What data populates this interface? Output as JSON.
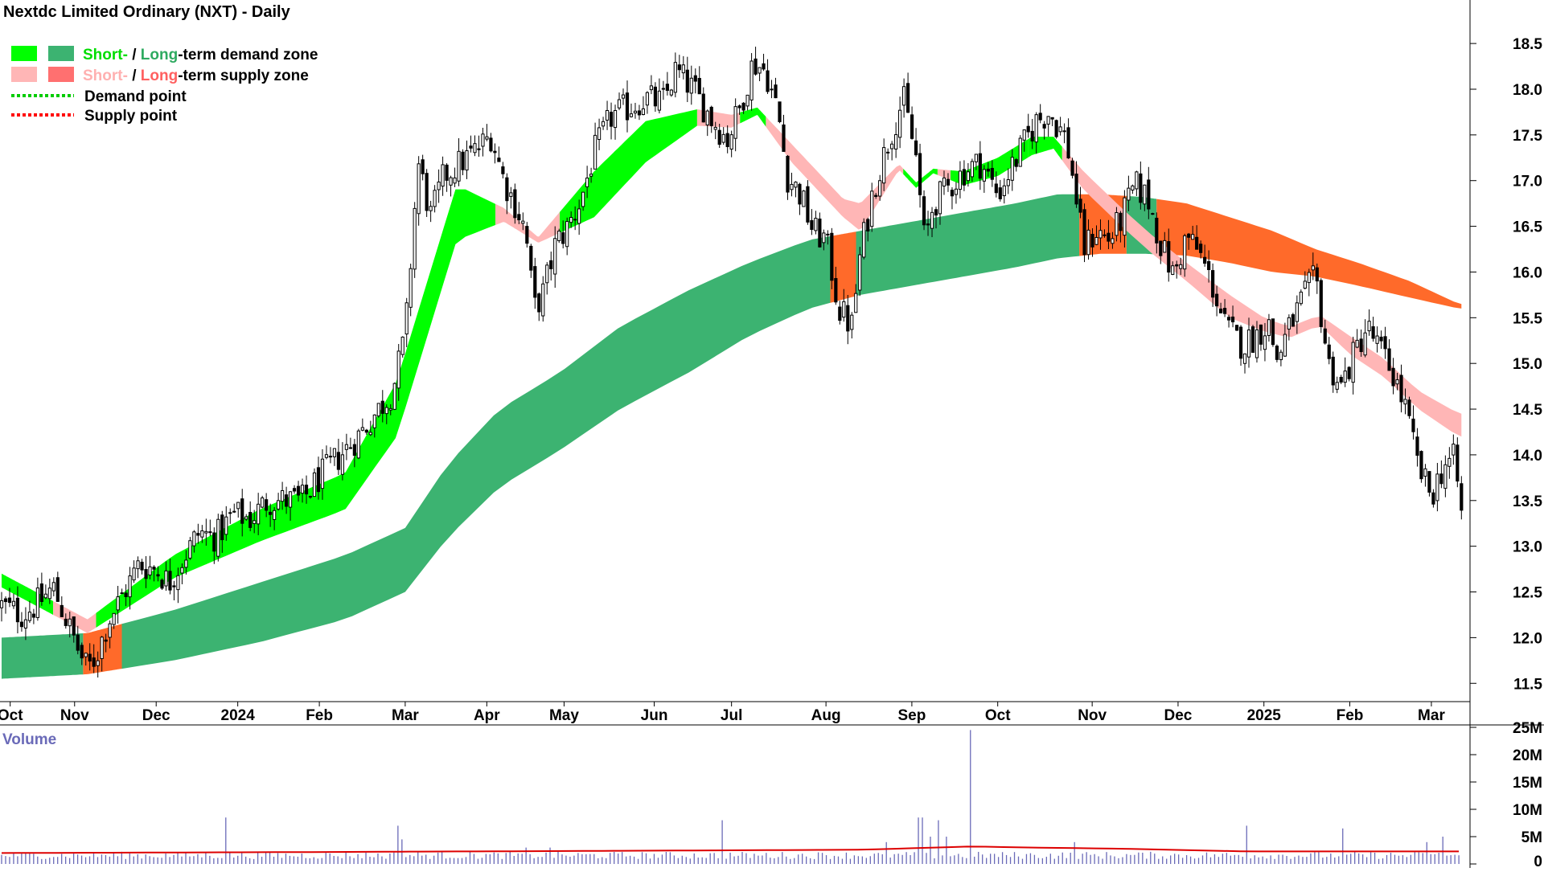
{
  "title": "Nextdc Limited Ordinary (NXT) - Daily",
  "colors": {
    "short_demand": "#00ff00",
    "long_demand": "#3cb371",
    "short_supply": "#ffb6b6",
    "long_supply": "#ff6a2a",
    "demand_point": "#00cc00",
    "supply_point": "#ff0000",
    "volume_bar": "#6a6ab8",
    "volume_ma": "#dd0000",
    "candle": "#000000"
  },
  "legend": {
    "demand": {
      "short": "Short-",
      "sep": " / ",
      "long": "Long",
      "rest": "-term demand zone"
    },
    "supply": {
      "short": "Short-",
      "sep": " / ",
      "long": "Long",
      "rest": "-term supply zone"
    },
    "demand_point": "Demand point",
    "supply_point": "Supply point"
  },
  "volume_label": "Volume",
  "chart_data": [
    {
      "type": "candlestick",
      "title": "Nextdc Limited Ordinary (NXT) - Daily",
      "x_ticks": [
        {
          "t": 0.1,
          "label": "Oct"
        },
        {
          "t": 0.85,
          "label": "Nov"
        },
        {
          "t": 1.8,
          "label": "Dec"
        },
        {
          "t": 2.75,
          "label": "2024"
        },
        {
          "t": 3.7,
          "label": "Feb"
        },
        {
          "t": 4.7,
          "label": "Mar"
        },
        {
          "t": 5.65,
          "label": "Apr"
        },
        {
          "t": 6.55,
          "label": "May"
        },
        {
          "t": 7.6,
          "label": "Jun"
        },
        {
          "t": 8.5,
          "label": "Jul"
        },
        {
          "t": 9.6,
          "label": "Aug"
        },
        {
          "t": 10.6,
          "label": "Sep"
        },
        {
          "t": 11.6,
          "label": "Oct"
        },
        {
          "t": 12.7,
          "label": "Nov"
        },
        {
          "t": 13.7,
          "label": "Dec"
        },
        {
          "t": 14.7,
          "label": "2025"
        },
        {
          "t": 15.7,
          "label": "Feb"
        },
        {
          "t": 16.65,
          "label": "Mar"
        }
      ],
      "y_ticks": [
        "11.5",
        "12.0",
        "12.5",
        "13.0",
        "13.5",
        "14.0",
        "14.5",
        "15.0",
        "15.5",
        "16.0",
        "16.5",
        "17.0",
        "17.5",
        "18.0",
        "18.5"
      ],
      "ylim": [
        11.3,
        18.8
      ],
      "x_range_months": [
        0,
        17.1
      ],
      "close_path": [
        [
          0,
          12.35
        ],
        [
          0.25,
          12.25
        ],
        [
          0.45,
          12.4
        ],
        [
          0.6,
          12.55
        ],
        [
          0.75,
          12.2
        ],
        [
          0.9,
          11.85
        ],
        [
          1.0,
          11.65
        ],
        [
          1.1,
          11.8
        ],
        [
          1.25,
          12.2
        ],
        [
          1.4,
          12.45
        ],
        [
          1.6,
          12.8
        ],
        [
          1.8,
          12.75
        ],
        [
          1.95,
          12.6
        ],
        [
          2.1,
          12.85
        ],
        [
          2.3,
          13.15
        ],
        [
          2.5,
          13.1
        ],
        [
          2.7,
          13.35
        ],
        [
          2.9,
          13.3
        ],
        [
          3.1,
          13.5
        ],
        [
          3.3,
          13.5
        ],
        [
          3.5,
          13.5
        ],
        [
          3.7,
          13.75
        ],
        [
          3.9,
          13.95
        ],
        [
          4.15,
          14.2
        ],
        [
          4.35,
          14.45
        ],
        [
          4.55,
          14.7
        ],
        [
          4.7,
          15.3
        ],
        [
          4.85,
          17.2
        ],
        [
          5.0,
          16.6
        ],
        [
          5.15,
          17.05
        ],
        [
          5.35,
          17.2
        ],
        [
          5.55,
          17.35
        ],
        [
          5.7,
          17.5
        ],
        [
          5.85,
          17.0
        ],
        [
          6.0,
          16.7
        ],
        [
          6.1,
          16.45
        ],
        [
          6.2,
          15.6
        ],
        [
          6.3,
          15.75
        ],
        [
          6.45,
          16.3
        ],
        [
          6.6,
          16.5
        ],
        [
          6.75,
          16.8
        ],
        [
          6.9,
          17.3
        ],
        [
          7.1,
          17.7
        ],
        [
          7.3,
          17.8
        ],
        [
          7.5,
          17.9
        ],
        [
          7.7,
          17.85
        ],
        [
          7.85,
          18.2
        ],
        [
          8.05,
          18.0
        ],
        [
          8.25,
          17.7
        ],
        [
          8.45,
          17.45
        ],
        [
          8.6,
          17.8
        ],
        [
          8.75,
          18.3
        ],
        [
          8.9,
          18.2
        ],
        [
          9.05,
          17.7
        ],
        [
          9.15,
          17.05
        ],
        [
          9.3,
          16.85
        ],
        [
          9.45,
          16.45
        ],
        [
          9.6,
          16.35
        ],
        [
          9.75,
          15.6
        ],
        [
          9.9,
          15.4
        ],
        [
          10.0,
          16.2
        ],
        [
          10.15,
          16.9
        ],
        [
          10.35,
          17.5
        ],
        [
          10.5,
          17.9
        ],
        [
          10.65,
          17.25
        ],
        [
          10.75,
          16.3
        ],
        [
          10.85,
          16.75
        ],
        [
          11.0,
          16.9
        ],
        [
          11.2,
          17.1
        ],
        [
          11.4,
          17.2
        ],
        [
          11.6,
          16.85
        ],
        [
          11.85,
          17.3
        ],
        [
          12.05,
          17.65
        ],
        [
          12.2,
          17.75
        ],
        [
          12.4,
          17.45
        ],
        [
          12.5,
          16.9
        ],
        [
          12.6,
          16.25
        ],
        [
          12.75,
          16.45
        ],
        [
          12.9,
          16.35
        ],
        [
          13.05,
          16.6
        ],
        [
          13.2,
          16.95
        ],
        [
          13.35,
          16.8
        ],
        [
          13.5,
          16.3
        ],
        [
          13.65,
          15.95
        ],
        [
          13.8,
          16.4
        ],
        [
          13.95,
          16.2
        ],
        [
          14.1,
          15.85
        ],
        [
          14.25,
          15.4
        ],
        [
          14.45,
          15.2
        ],
        [
          14.6,
          15.3
        ],
        [
          14.75,
          15.45
        ],
        [
          14.85,
          15.05
        ],
        [
          15.0,
          15.4
        ],
        [
          15.15,
          15.7
        ],
        [
          15.3,
          15.95
        ],
        [
          15.45,
          15.0
        ],
        [
          15.6,
          14.75
        ],
        [
          15.75,
          15.1
        ],
        [
          15.9,
          15.4
        ],
        [
          16.05,
          15.15
        ],
        [
          16.2,
          14.9
        ],
        [
          16.35,
          14.5
        ],
        [
          16.5,
          13.85
        ],
        [
          16.65,
          13.55
        ],
        [
          16.8,
          13.9
        ],
        [
          16.92,
          13.95
        ],
        [
          17.0,
          13.35
        ]
      ],
      "short_term_zone": {
        "x": [
          0,
          1.0,
          2.0,
          3.0,
          4.0,
          4.6,
          5.3,
          5.85,
          6.25,
          6.9,
          7.5,
          8.1,
          8.5,
          8.8,
          9.2,
          9.8,
          10.0,
          10.45,
          10.65,
          10.85,
          11.2,
          11.6,
          12.0,
          12.25,
          12.6,
          13.1,
          13.4,
          13.8,
          14.3,
          14.7,
          15.0,
          15.35,
          15.7,
          16.1,
          16.5,
          16.97
        ],
        "upper": [
          12.7,
          12.2,
          12.9,
          13.4,
          13.8,
          14.8,
          16.95,
          16.7,
          16.38,
          17.1,
          17.65,
          17.78,
          17.72,
          17.8,
          17.4,
          16.8,
          16.75,
          17.18,
          16.98,
          17.13,
          17.1,
          17.25,
          17.48,
          17.48,
          17.1,
          16.65,
          16.4,
          16.1,
          15.75,
          15.5,
          15.4,
          15.53,
          15.3,
          15.05,
          14.7,
          14.45
        ],
        "lower": [
          12.55,
          12.05,
          12.65,
          13.05,
          13.4,
          14.2,
          16.35,
          16.55,
          16.32,
          16.6,
          17.2,
          17.6,
          17.58,
          17.72,
          17.2,
          16.6,
          16.45,
          17.12,
          16.92,
          17.08,
          16.95,
          17.05,
          17.28,
          17.35,
          16.9,
          16.45,
          16.2,
          15.9,
          15.5,
          15.35,
          15.28,
          15.42,
          15.1,
          14.85,
          14.5,
          14.2
        ],
        "state": [
          [
            "demand",
            0,
            0.6
          ],
          [
            "supply",
            0.6,
            1.1
          ],
          [
            "demand",
            1.1,
            5.75
          ],
          [
            "supply",
            5.75,
            6.5
          ],
          [
            "demand",
            6.5,
            8.1
          ],
          [
            "supply",
            8.1,
            8.6
          ],
          [
            "demand",
            8.6,
            8.9
          ],
          [
            "supply",
            8.9,
            10.5
          ],
          [
            "demand",
            10.5,
            10.9
          ],
          [
            "supply",
            10.9,
            11.05
          ],
          [
            "demand",
            11.05,
            11.95
          ],
          [
            "demand",
            11.95,
            12.35
          ],
          [
            "supply",
            12.35,
            17.0
          ]
        ]
      },
      "long_term_zone": {
        "x": [
          0,
          1.0,
          2.0,
          3.0,
          4.0,
          4.7,
          5.2,
          5.8,
          6.5,
          7.2,
          8.0,
          8.7,
          9.4,
          10.0,
          10.6,
          11.2,
          11.8,
          12.3,
          12.8,
          13.3,
          13.8,
          14.3,
          14.8,
          15.3,
          15.8,
          16.4,
          16.97
        ],
        "upper": [
          12.0,
          12.05,
          12.3,
          12.6,
          12.9,
          13.2,
          13.9,
          14.5,
          14.9,
          15.4,
          15.8,
          16.1,
          16.35,
          16.45,
          16.55,
          16.65,
          16.75,
          16.85,
          16.85,
          16.82,
          16.75,
          16.6,
          16.45,
          16.25,
          16.1,
          15.9,
          15.65
        ],
        "lower": [
          11.55,
          11.6,
          11.75,
          11.95,
          12.2,
          12.5,
          13.1,
          13.65,
          14.05,
          14.5,
          14.9,
          15.3,
          15.6,
          15.75,
          15.85,
          15.95,
          16.05,
          16.15,
          16.2,
          16.2,
          16.18,
          16.1,
          16.0,
          15.95,
          15.85,
          15.72,
          15.6
        ],
        "state": [
          [
            "demand",
            0,
            0.95
          ],
          [
            "supply",
            0.95,
            1.4
          ],
          [
            "demand",
            1.4,
            9.65
          ],
          [
            "supply",
            9.65,
            9.95
          ],
          [
            "demand",
            9.95,
            12.55
          ],
          [
            "supply",
            12.55,
            13.1
          ],
          [
            "demand",
            13.1,
            13.45
          ],
          [
            "supply",
            13.45,
            17.0
          ]
        ]
      }
    },
    {
      "type": "bar",
      "title": "Volume",
      "y_ticks": [
        "0",
        "5M",
        "10M",
        "15M",
        "20M",
        "25M"
      ],
      "ylim": [
        0,
        25
      ],
      "unit": "M",
      "baseline_volume": 1.5,
      "spikes": [
        {
          "t": 2.6,
          "v": 8.5
        },
        {
          "t": 4.6,
          "v": 7.0
        },
        {
          "t": 4.65,
          "v": 4.5
        },
        {
          "t": 6.1,
          "v": 3.0
        },
        {
          "t": 6.4,
          "v": 3.0
        },
        {
          "t": 8.4,
          "v": 8.0
        },
        {
          "t": 10.3,
          "v": 4.0
        },
        {
          "t": 10.7,
          "v": 8.5
        },
        {
          "t": 10.8,
          "v": 5.0
        },
        {
          "t": 10.9,
          "v": 8.0
        },
        {
          "t": 11.0,
          "v": 5.0
        },
        {
          "t": 11.3,
          "v": 24.5
        },
        {
          "t": 12.5,
          "v": 4.0
        },
        {
          "t": 14.5,
          "v": 7.0
        },
        {
          "t": 15.6,
          "v": 6.5
        },
        {
          "t": 16.8,
          "v": 5.0
        },
        {
          "t": 16.6,
          "v": 4.0
        }
      ],
      "moving_average": [
        [
          0,
          2.0
        ],
        [
          4.0,
          2.2
        ],
        [
          10.0,
          2.6
        ],
        [
          11.3,
          3.2
        ],
        [
          12.0,
          3.0
        ],
        [
          13.0,
          2.8
        ],
        [
          14.5,
          2.3
        ],
        [
          17.0,
          2.3
        ]
      ]
    }
  ]
}
